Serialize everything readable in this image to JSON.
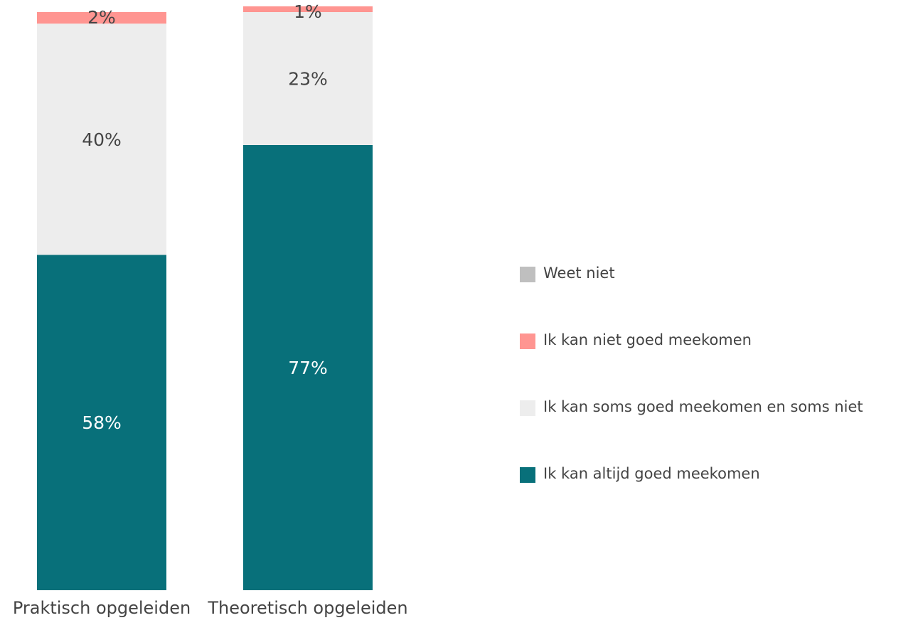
{
  "chart_data": {
    "type": "bar",
    "stacked": true,
    "categories": [
      "Praktisch opgeleiden",
      "Theoretisch opgeleiden"
    ],
    "series": [
      {
        "name": "Ik kan altijd goed meekomen",
        "values": [
          58,
          77
        ],
        "labels": [
          "58%",
          "77%"
        ],
        "color": "#08707A",
        "label_color": "#ffffff"
      },
      {
        "name": "Ik kan soms goed meekomen en soms niet",
        "values": [
          40,
          23
        ],
        "labels": [
          "40%",
          "23%"
        ],
        "color": "#EDEDED",
        "label_color": "#444444"
      },
      {
        "name": "Ik kan niet goed meekomen",
        "values": [
          2,
          1
        ],
        "labels": [
          "2%",
          "1%"
        ],
        "color": "#FF9591",
        "label_color": "#444444"
      },
      {
        "name": "Weet niet",
        "values": [
          0,
          0
        ],
        "labels": [
          "",
          ""
        ],
        "color": "#BFBFBF",
        "label_color": "#444444"
      }
    ],
    "legend_order": [
      "Weet niet",
      "Ik kan niet goed meekomen",
      "Ik kan soms goed meekomen en soms niet",
      "Ik kan altijd goed meekomen"
    ],
    "legend_position": "right",
    "ylim": [
      0,
      100
    ],
    "grid": false
  }
}
